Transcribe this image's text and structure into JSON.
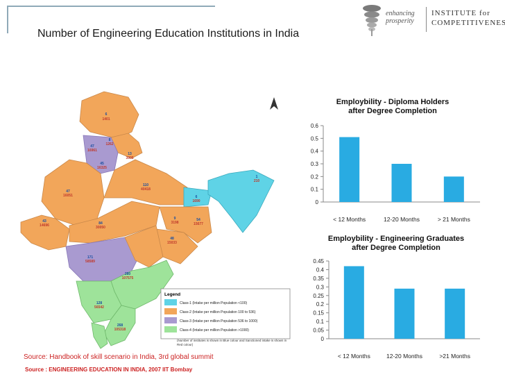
{
  "slide": {
    "title": "Number of Engineering Education Institutions in India",
    "source_line1": "Source: Handbook of skill scenario in India, 3rd global summit",
    "source_line2": "Source : ENGINEERING EDUCATION IN INDIA, 2007 IIT Bombay"
  },
  "logo": {
    "tagline_1": "enhancing",
    "tagline_2": "prosperity",
    "name_1": "INSTITUTE for",
    "name_2": "COMPETITIVENESS"
  },
  "map": {
    "legend_title": "Legend",
    "legend": [
      {
        "label": "Class-1 (Intake per million Population <100)",
        "color": "#5fd3e6"
      },
      {
        "label": "Class-2 (Intake per million Population 100 to 536)",
        "color": "#f2a65a"
      },
      {
        "label": "Class-3 (Intake per million Population 536 to 1000)",
        "color": "#a99ad0"
      },
      {
        "label": "Class-4 (Intake per million Population >1000)",
        "color": "#9ee39a"
      }
    ],
    "note": "(Number of institutes is shown in Blue colour and Sanctioned intake is shown in Red colour)",
    "labels": [
      {
        "count": "6",
        "intake": "1401"
      },
      {
        "count": "8",
        "intake": "1262"
      },
      {
        "count": "47",
        "intake": "16961"
      },
      {
        "count": "13",
        "intake": "3905"
      },
      {
        "count": "45",
        "intake": "16325"
      },
      {
        "count": "110",
        "intake": "40418"
      },
      {
        "count": "1",
        "intake": "210"
      },
      {
        "count": "47",
        "intake": "16051"
      },
      {
        "count": "6",
        "intake": "1690"
      },
      {
        "count": "43",
        "intake": "14696"
      },
      {
        "count": "84",
        "intake": "30050"
      },
      {
        "count": "9",
        "intake": "3198"
      },
      {
        "count": "54",
        "intake": "15677"
      },
      {
        "count": "48",
        "intake": "15033"
      },
      {
        "count": "171",
        "intake": "58589"
      },
      {
        "count": "280",
        "intake": "107575"
      },
      {
        "count": "128",
        "intake": "56542"
      },
      {
        "count": "268",
        "intake": "105318"
      }
    ]
  },
  "chart_data": [
    {
      "type": "bar",
      "title": "Employbility - Diploma Holders after Degree Completion",
      "categories": [
        "< 12 Months",
        "12-20 Months",
        "> 21 Months"
      ],
      "values": [
        0.51,
        0.3,
        0.2
      ],
      "ylim": [
        0,
        0.6
      ],
      "yticks": [
        "0",
        "0.1",
        "0.2",
        "0.3",
        "0.4",
        "0.5",
        "0.6"
      ],
      "color": "#29abe2",
      "grid": false,
      "legend": "none"
    },
    {
      "type": "bar",
      "title": "Employbility - Engineering Graduates after Degree Completion",
      "categories": [
        "< 12 Months",
        "12-20 Months",
        ">21 Months"
      ],
      "values": [
        0.42,
        0.29,
        0.29
      ],
      "ylim": [
        0,
        0.45
      ],
      "yticks": [
        "0",
        "0.05",
        "0.1",
        "0.15",
        "0.2",
        "0.25",
        "0.3",
        "0.35",
        "0.4",
        "0.45"
      ],
      "color": "#29abe2",
      "grid": false,
      "legend": "none"
    }
  ]
}
